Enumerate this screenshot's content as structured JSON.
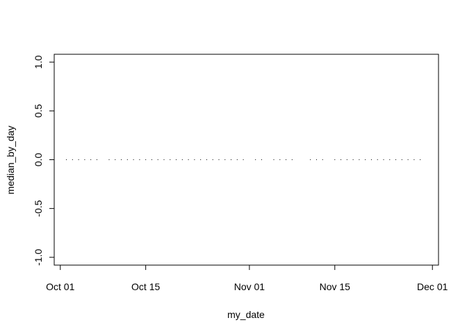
{
  "chart_data": {
    "type": "scatter",
    "xlabel": "my_date",
    "ylabel": "median_by_day",
    "xlim": [
      "2023-09-30",
      "2023-12-02"
    ],
    "ylim": [
      -1.08,
      1.08
    ],
    "x_ticks": [
      "2023-10-01",
      "2023-10-15",
      "2023-11-01",
      "2023-11-15",
      "2023-12-01"
    ],
    "x_tick_labels": [
      "Oct 01",
      "Oct 15",
      "Nov 01",
      "Nov 15",
      "Dec 01"
    ],
    "y_ticks": [
      -1.0,
      -0.5,
      0.0,
      0.5,
      1.0
    ],
    "y_tick_labels": [
      "-1.0",
      "-0.5",
      "0.0",
      "0.5",
      "1.0"
    ],
    "grid": false,
    "series": [
      {
        "x": [
          "2023-10-02",
          "2023-10-03",
          "2023-10-04",
          "2023-10-05",
          "2023-10-06",
          "2023-10-07",
          "2023-10-09",
          "2023-10-10",
          "2023-10-11",
          "2023-10-12",
          "2023-10-13",
          "2023-10-14",
          "2023-10-15",
          "2023-10-16",
          "2023-10-17",
          "2023-10-18",
          "2023-10-19",
          "2023-10-20",
          "2023-10-21",
          "2023-10-22",
          "2023-10-23",
          "2023-10-24",
          "2023-10-25",
          "2023-10-26",
          "2023-10-27",
          "2023-10-28",
          "2023-10-29",
          "2023-10-30",
          "2023-10-31",
          "2023-11-02",
          "2023-11-03",
          "2023-11-05",
          "2023-11-06",
          "2023-11-07",
          "2023-11-08",
          "2023-11-11",
          "2023-11-12",
          "2023-11-13",
          "2023-11-15",
          "2023-11-16",
          "2023-11-17",
          "2023-11-18",
          "2023-11-19",
          "2023-11-20",
          "2023-11-21",
          "2023-11-22",
          "2023-11-23",
          "2023-11-24",
          "2023-11-25",
          "2023-11-26",
          "2023-11-27",
          "2023-11-28",
          "2023-11-29"
        ],
        "y": [
          0,
          0,
          0,
          0,
          0,
          0,
          0,
          0,
          0,
          0,
          0,
          0,
          0,
          0,
          0,
          0,
          0,
          0,
          0,
          0,
          0,
          0,
          0,
          0,
          0,
          0,
          0,
          0,
          0,
          0,
          0,
          0,
          0,
          0,
          0,
          0,
          0,
          0,
          0,
          0,
          0,
          0,
          0,
          0,
          0,
          0,
          0,
          0,
          0,
          0,
          0,
          0,
          0
        ]
      }
    ]
  }
}
